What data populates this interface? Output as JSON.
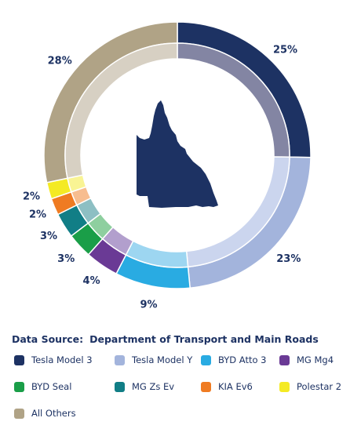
{
  "source": {
    "label": "Data Source:",
    "value": "Department of Transport and Main Roads"
  },
  "chart_data": {
    "type": "pie",
    "title": "",
    "categories": [
      "Tesla Model 3",
      "Tesla Model Y",
      "BYD Atto 3",
      "MG Mg4",
      "BYD Seal",
      "MG Zs Ev",
      "KIA Ev6",
      "Polestar 2",
      "All Others"
    ],
    "values": [
      25,
      23,
      9,
      4,
      3,
      3,
      2,
      2,
      28
    ],
    "value_labels": [
      "25%",
      "23%",
      "9%",
      "4%",
      "3%",
      "3%",
      "2%",
      "2%",
      "28%"
    ],
    "colors": [
      "#1d3263",
      "#a3b4dc",
      "#29abe2",
      "#6a3a95",
      "#1a9e48",
      "#117e86",
      "#ef7b22",
      "#f4ea24",
      "#b0a386"
    ],
    "inner_colors": [
      "#8385a3",
      "#cbd5ee",
      "#9dd6f1",
      "#b29fcd",
      "#8ecf9f",
      "#8dbfc3",
      "#f7bd8f",
      "#f9f494",
      "#d7d0c3"
    ],
    "legend_placement": "bottom",
    "center_icon": "queensland-map-icon"
  }
}
